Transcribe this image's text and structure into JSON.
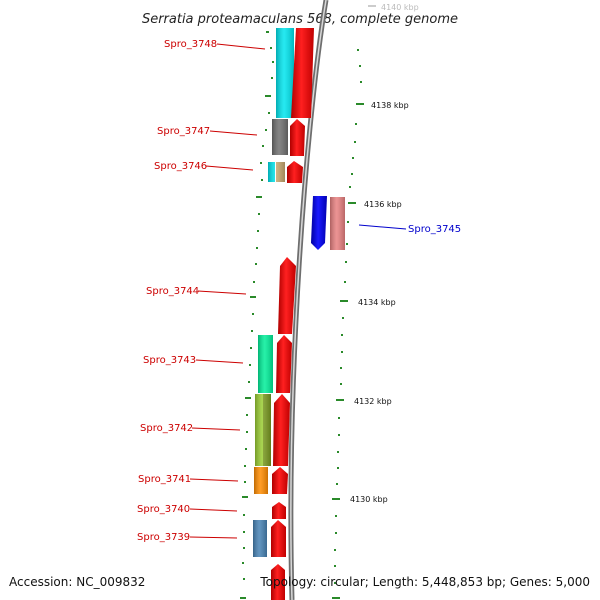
{
  "title": "Serratia proteamaculans 568, complete genome",
  "accession": "Accession: NC_009832",
  "topology": "Topology: circular; Length: 5,448,853 bp; Genes: 5,000",
  "colors": {
    "backbone": "#7a7a7a",
    "tick": "#2a8a2a",
    "forward_label": "#cc0000",
    "reverse_label": "#0000cc",
    "cds_forward": "#ff0000",
    "cds_reverse": "#0000ff"
  },
  "scale_labels": [
    "4140 kbp",
    "4138 kbp",
    "4136 kbp",
    "4134 kbp",
    "4132 kbp",
    "4130 kbp"
  ],
  "genes": [
    {
      "id": "Spro_3748",
      "strand": "+",
      "cog_color": "#00e5ee"
    },
    {
      "id": "Spro_3747",
      "strand": "+",
      "cog_color": "#707070"
    },
    {
      "id": "Spro_3746",
      "strand": "+",
      "cog_color": "#00e5ee",
      "cog_color2": "#c8a870"
    },
    {
      "id": "Spro_3745",
      "strand": "-",
      "cog_color": "#e88080"
    },
    {
      "id": "Spro_3744",
      "strand": "+",
      "cog_color": ""
    },
    {
      "id": "Spro_3743",
      "strand": "+",
      "cog_color": "#00ee99"
    },
    {
      "id": "Spro_3742",
      "strand": "+",
      "cog_color": "#9acd32"
    },
    {
      "id": "Spro_3741",
      "strand": "+",
      "cog_color": "#ff8c00"
    },
    {
      "id": "Spro_3740",
      "strand": "+",
      "cog_color": ""
    },
    {
      "id": "Spro_3739",
      "strand": "+",
      "cog_color": "#4682b4"
    }
  ]
}
